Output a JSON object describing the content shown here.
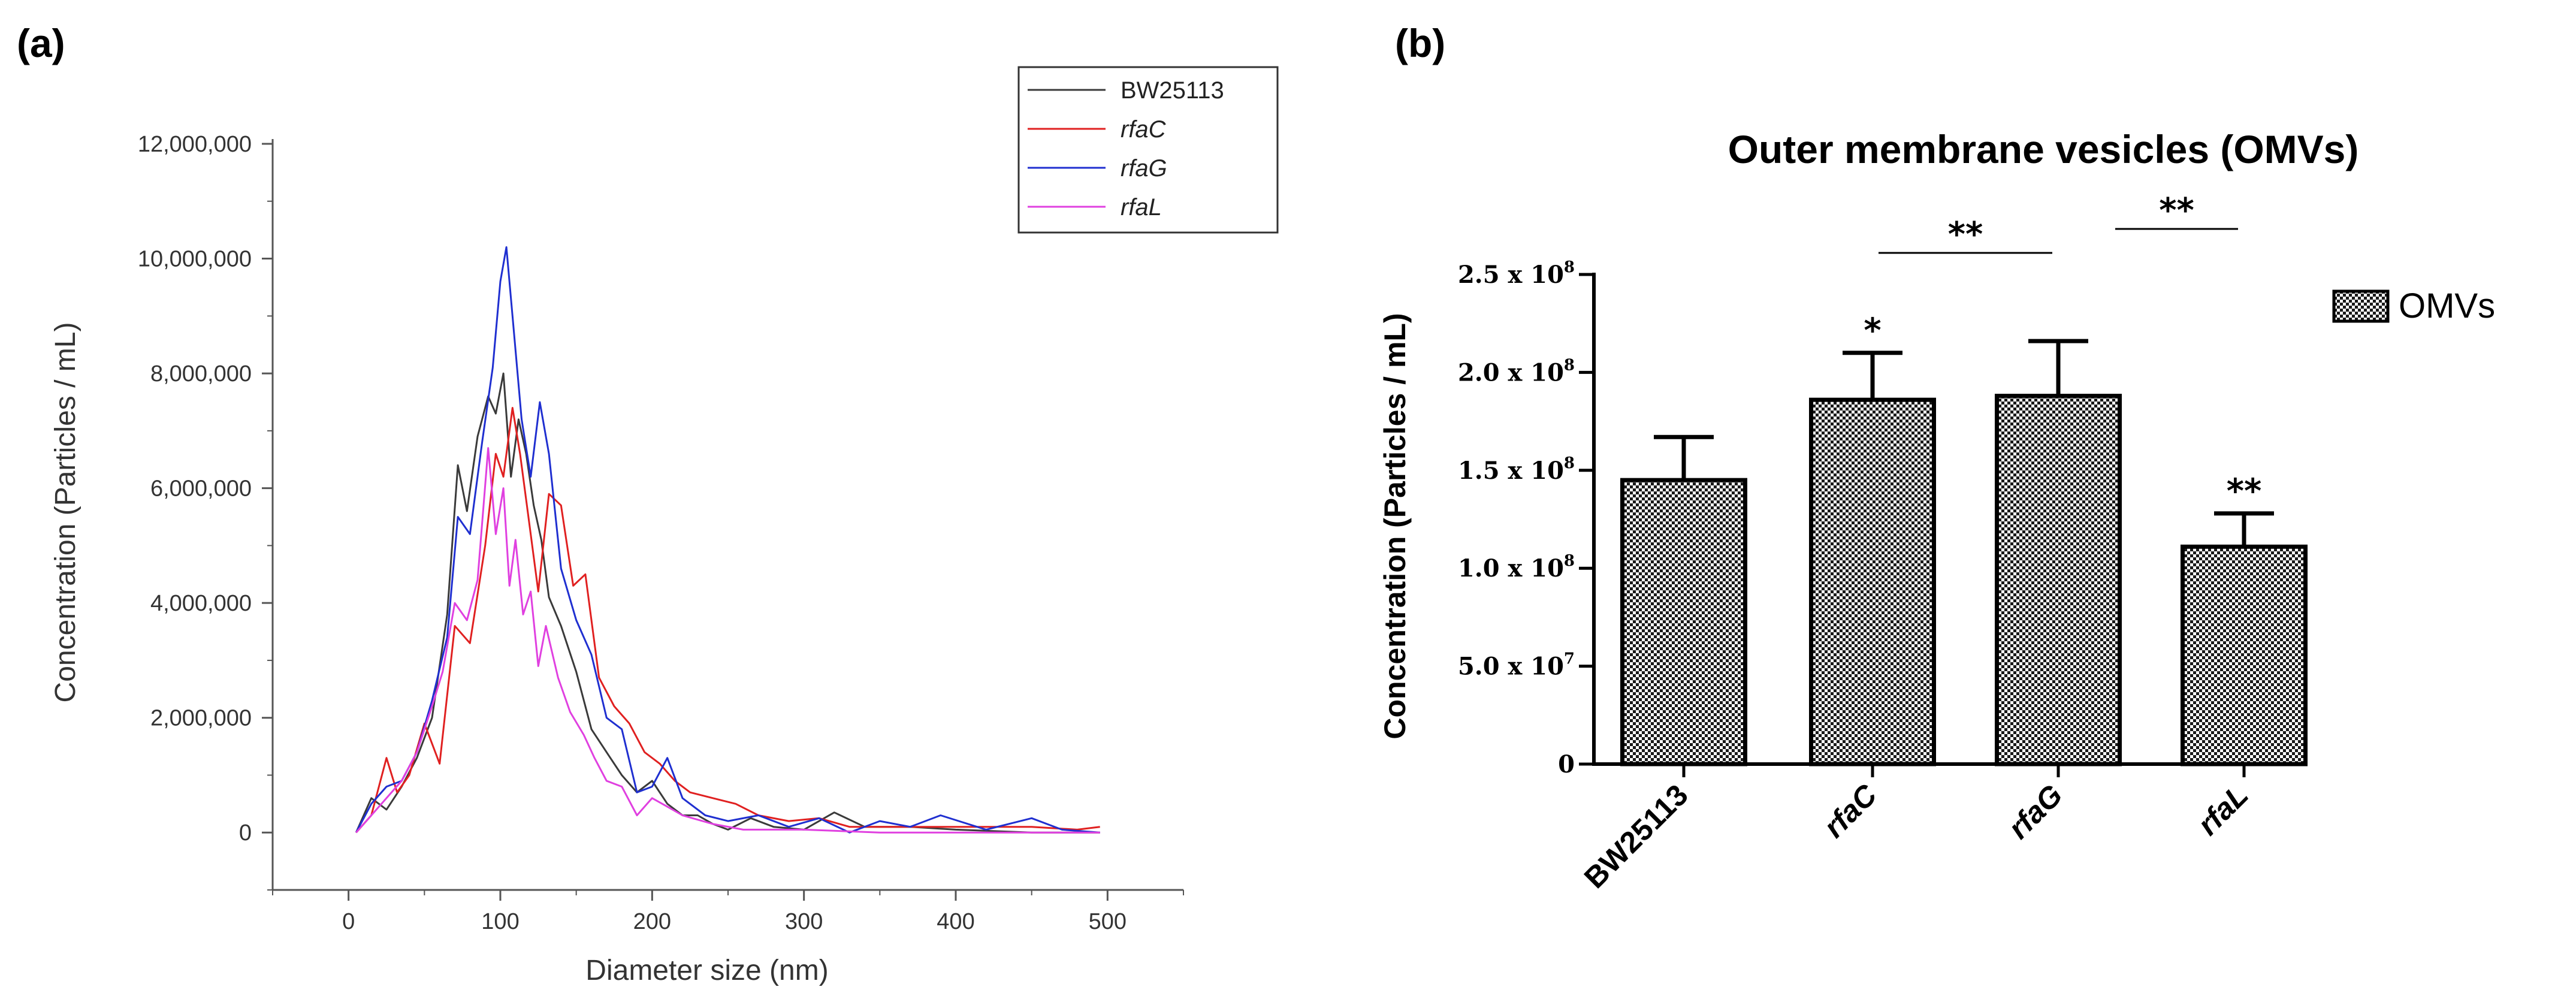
{
  "figure": {
    "panel_a_label": "(a)",
    "panel_b_label": "(b)"
  },
  "chart_data": [
    {
      "type": "line",
      "panel": "(a)",
      "title": "",
      "xlabel": "Diameter size (nm)",
      "ylabel": "Concentration (Particles / mL)",
      "xlim": [
        -50,
        550
      ],
      "ylim": [
        -1000000,
        12000000
      ],
      "xticks": [
        0,
        100,
        200,
        300,
        400,
        500
      ],
      "yticks": [
        0,
        2000000,
        4000000,
        6000000,
        8000000,
        10000000,
        12000000
      ],
      "ytick_labels": [
        "0",
        "2,000,000",
        "4,000,000",
        "6,000,000",
        "8,000,000",
        "10,000,000",
        "12,000,000"
      ],
      "legend_position": "top-right",
      "colors": {
        "BW25113": "#3a3a3a",
        "rfaC": "#e02020",
        "rfaG": "#1f2fd0",
        "rfaL": "#e040e0"
      },
      "series": [
        {
          "name": "BW25113",
          "color": "#3a3a3a",
          "x": [
            5,
            15,
            25,
            35,
            45,
            55,
            65,
            72,
            78,
            85,
            92,
            97,
            102,
            107,
            112,
            117,
            122,
            127,
            132,
            140,
            150,
            160,
            170,
            180,
            190,
            200,
            210,
            220,
            230,
            240,
            250,
            265,
            280,
            300,
            320,
            340,
            370,
            400,
            450,
            495
          ],
          "y": [
            0,
            600000,
            400000,
            800000,
            1300000,
            2000000,
            3800000,
            6400000,
            5600000,
            6900000,
            7600000,
            7300000,
            8000000,
            6200000,
            7200000,
            6600000,
            5700000,
            5100000,
            4100000,
            3600000,
            2800000,
            1800000,
            1400000,
            1000000,
            700000,
            900000,
            500000,
            300000,
            300000,
            150000,
            50000,
            250000,
            100000,
            50000,
            350000,
            100000,
            100000,
            50000,
            0,
            0
          ]
        },
        {
          "name": "rfaC",
          "color": "#e02020",
          "x": [
            5,
            15,
            25,
            32,
            40,
            50,
            60,
            70,
            80,
            90,
            97,
            102,
            108,
            113,
            118,
            125,
            132,
            140,
            148,
            156,
            165,
            175,
            185,
            195,
            205,
            215,
            225,
            240,
            255,
            270,
            290,
            310,
            330,
            360,
            400,
            450,
            480,
            495
          ],
          "y": [
            0,
            300000,
            1300000,
            700000,
            1000000,
            1900000,
            1200000,
            3600000,
            3300000,
            5000000,
            6600000,
            6200000,
            7400000,
            6600000,
            5600000,
            4200000,
            5900000,
            5700000,
            4300000,
            4500000,
            2700000,
            2200000,
            1900000,
            1400000,
            1200000,
            900000,
            700000,
            600000,
            500000,
            300000,
            200000,
            250000,
            100000,
            100000,
            100000,
            100000,
            50000,
            100000
          ]
        },
        {
          "name": "rfaG",
          "color": "#1f2fd0",
          "x": [
            5,
            15,
            25,
            35,
            45,
            55,
            65,
            72,
            80,
            88,
            95,
            100,
            104,
            108,
            114,
            120,
            126,
            132,
            140,
            150,
            160,
            170,
            180,
            190,
            200,
            210,
            220,
            235,
            250,
            270,
            290,
            310,
            330,
            350,
            370,
            390,
            420,
            450,
            470,
            495
          ],
          "y": [
            0,
            500000,
            800000,
            900000,
            1400000,
            2300000,
            3400000,
            5500000,
            5200000,
            6800000,
            8100000,
            9600000,
            10200000,
            9000000,
            7200000,
            6200000,
            7500000,
            6600000,
            4600000,
            3700000,
            3100000,
            2000000,
            1800000,
            700000,
            800000,
            1300000,
            600000,
            300000,
            200000,
            300000,
            100000,
            250000,
            0,
            200000,
            100000,
            300000,
            50000,
            250000,
            50000,
            0
          ]
        },
        {
          "name": "rfaL",
          "color": "#e040e0",
          "x": [
            5,
            15,
            25,
            35,
            45,
            55,
            62,
            70,
            78,
            85,
            92,
            97,
            102,
            106,
            110,
            115,
            120,
            125,
            130,
            138,
            146,
            155,
            162,
            170,
            180,
            190,
            200,
            210,
            220,
            240,
            260,
            300,
            350,
            400,
            450,
            495
          ],
          "y": [
            0,
            300000,
            600000,
            900000,
            1400000,
            2200000,
            2800000,
            4000000,
            3700000,
            4400000,
            6700000,
            5200000,
            6000000,
            4300000,
            5100000,
            3800000,
            4200000,
            2900000,
            3600000,
            2700000,
            2100000,
            1700000,
            1300000,
            900000,
            800000,
            300000,
            600000,
            450000,
            300000,
            150000,
            50000,
            50000,
            0,
            0,
            0,
            0
          ]
        }
      ]
    },
    {
      "type": "bar",
      "panel": "(b)",
      "title": "Outer membrane vesicles (OMVs)",
      "xlabel": "",
      "ylabel": "Concentration (Particles / mL)",
      "ylim": [
        0,
        250000000
      ],
      "yticks": [
        {
          "value": 0,
          "mantissa": "0",
          "exp": ""
        },
        {
          "value": 50000000,
          "mantissa": "5.0 x 10",
          "exp": "7"
        },
        {
          "value": 100000000,
          "mantissa": "1.0 x 10",
          "exp": "8"
        },
        {
          "value": 150000000,
          "mantissa": "1.5 x 10",
          "exp": "8"
        },
        {
          "value": 200000000,
          "mantissa": "2.0 x 10",
          "exp": "8"
        },
        {
          "value": 250000000,
          "mantissa": "2.5 x 10",
          "exp": "8"
        }
      ],
      "categories": [
        "BW25113",
        "rfaC",
        "rfaG",
        "rfaL"
      ],
      "italic_categories": [
        false,
        true,
        true,
        true
      ],
      "series": [
        {
          "name": "OMVs",
          "values": [
            145000000,
            186000000,
            188000000,
            111000000
          ],
          "errors": [
            22000000,
            24000000,
            28000000,
            17000000
          ]
        }
      ],
      "significance": [
        {
          "category": "rfaC",
          "label": "*"
        },
        {
          "category": "rfaL",
          "label": "**"
        }
      ],
      "brackets": [
        {
          "from": "rfaC",
          "to": "rfaG",
          "label": "**"
        },
        {
          "from": "rfaG",
          "to": "rfaL",
          "label": "**"
        }
      ],
      "legend_position": "top-right",
      "pattern": "checkerboard"
    }
  ]
}
